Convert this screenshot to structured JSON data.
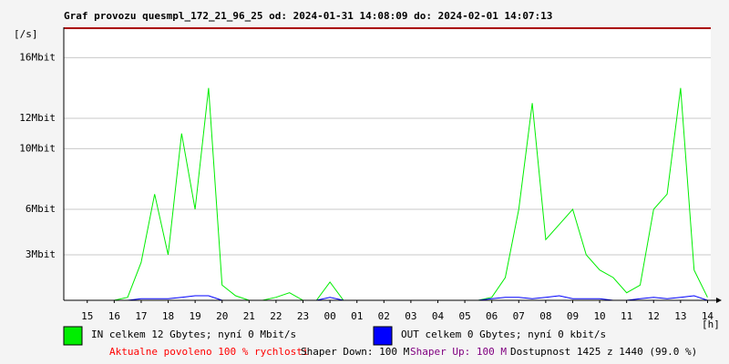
{
  "chart_data": {
    "type": "line",
    "title": "Graf provozu quesmpl_172_21_96_25 od: 2024-01-31 14:08:09 do: 2024-02-01 14:07:13",
    "y_label": "[/s]",
    "x_label": "[h]",
    "xlim": [
      14.13,
      38.12
    ],
    "xticks": [
      {
        "value": 15,
        "label": "15"
      },
      {
        "value": 16,
        "label": "16"
      },
      {
        "value": 17,
        "label": "17"
      },
      {
        "value": 18,
        "label": "18"
      },
      {
        "value": 19,
        "label": "19"
      },
      {
        "value": 20,
        "label": "20"
      },
      {
        "value": 21,
        "label": "21"
      },
      {
        "value": 22,
        "label": "22"
      },
      {
        "value": 23,
        "label": "23"
      },
      {
        "value": 24,
        "label": "00"
      },
      {
        "value": 25,
        "label": "01"
      },
      {
        "value": 26,
        "label": "02"
      },
      {
        "value": 27,
        "label": "03"
      },
      {
        "value": 28,
        "label": "04"
      },
      {
        "value": 29,
        "label": "05"
      },
      {
        "value": 30,
        "label": "06"
      },
      {
        "value": 31,
        "label": "07"
      },
      {
        "value": 32,
        "label": "08"
      },
      {
        "value": 33,
        "label": "09"
      },
      {
        "value": 34,
        "label": "10"
      },
      {
        "value": 35,
        "label": "11"
      },
      {
        "value": 36,
        "label": "12"
      },
      {
        "value": 37,
        "label": "13"
      },
      {
        "value": 38,
        "label": "14"
      }
    ],
    "ylim": [
      0,
      18
    ],
    "yticks": [
      {
        "value": 3,
        "label": "3Mbit"
      },
      {
        "value": 6,
        "label": "6Mbit"
      },
      {
        "value": 10,
        "label": "10Mbit"
      },
      {
        "value": 12,
        "label": "12Mbit"
      },
      {
        "value": 16,
        "label": "16Mbit"
      }
    ],
    "grid": true,
    "x": [
      14.5,
      15,
      15.5,
      16,
      16.5,
      17,
      17.5,
      18,
      18.5,
      19,
      19.5,
      20,
      20.5,
      21,
      21.5,
      22,
      22.5,
      23,
      23.5,
      24,
      24.5,
      25,
      25.5,
      26,
      26.5,
      27,
      27.5,
      28,
      28.5,
      29,
      29.5,
      30,
      30.5,
      31,
      31.5,
      32,
      32.5,
      33,
      33.5,
      34,
      34.5,
      35,
      35.5,
      36,
      36.5,
      37,
      37.5,
      38
    ],
    "series": [
      {
        "name": "IN celkem 12 Gbytes; nyní 0 Mbit/s",
        "color": "#00ee00",
        "values": [
          0,
          0,
          0,
          0,
          0.2,
          2.5,
          7,
          3,
          11,
          6,
          14,
          1,
          0.3,
          0,
          0,
          0.2,
          0.5,
          0,
          0,
          1.2,
          0,
          0,
          0,
          0,
          0,
          0,
          0,
          0,
          0,
          0,
          0,
          0.2,
          1.5,
          6,
          13,
          4,
          5,
          6,
          3,
          2,
          1.5,
          0.5,
          1,
          6,
          7,
          14,
          2,
          0.2
        ]
      },
      {
        "name": "OUT celkem 0 Gbytes; nyní 0 kbit/s",
        "color": "#0000ff",
        "values": [
          0,
          0,
          0,
          0,
          0,
          0.1,
          0.1,
          0.1,
          0.2,
          0.3,
          0.3,
          0,
          0,
          0,
          0,
          0,
          0,
          0,
          0,
          0.2,
          0,
          0,
          0,
          0,
          0,
          0,
          0,
          0,
          0,
          0,
          0,
          0.1,
          0.2,
          0.2,
          0.1,
          0.2,
          0.3,
          0.1,
          0.1,
          0.1,
          0,
          0,
          0.1,
          0.2,
          0.1,
          0.2,
          0.3,
          0
        ]
      }
    ]
  },
  "footer": [
    {
      "text": "Aktualne povoleno 100 % rychlosti",
      "color": "#ff0000"
    },
    {
      "text": "Shaper Down: 100 M",
      "color": "#000000"
    },
    {
      "text": "Shaper Up: 100 M",
      "color": "#800080"
    },
    {
      "text": "Dostupnost 1425 z 1440 (99.0 %)",
      "color": "#000000"
    }
  ]
}
